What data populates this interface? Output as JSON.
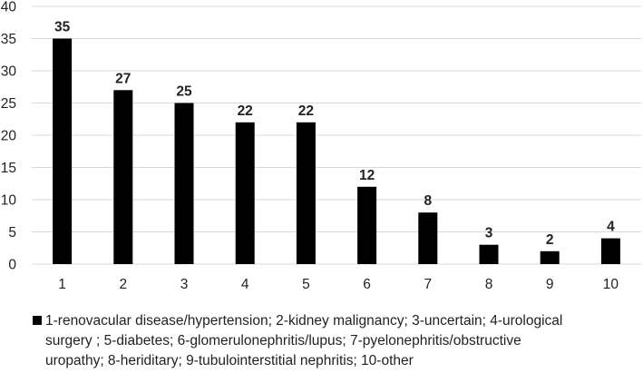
{
  "chart_data": {
    "type": "bar",
    "categories": [
      "1",
      "2",
      "3",
      "4",
      "5",
      "6",
      "7",
      "8",
      "9",
      "10"
    ],
    "values": [
      35,
      27,
      25,
      22,
      22,
      12,
      8,
      3,
      2,
      4
    ],
    "data_labels": [
      "35",
      "27",
      "25",
      "22",
      "22",
      "12",
      "8",
      "3",
      "2",
      "4"
    ],
    "y_ticks": [
      "0",
      "5",
      "10",
      "15",
      "20",
      "25",
      "30",
      "35",
      "40"
    ],
    "ylim": [
      0,
      40
    ],
    "grid": "horizontal",
    "bar_color": "#000000",
    "grid_color": "#d9d9d9",
    "legend_placement": "bottom",
    "legend": {
      "lines": [
        "1-renovacular disease/hypertension; 2-kidney malignancy; 3-uncertain; 4-urological",
        "surgery ; 5-diabetes; 6-glomerulonephritis/lupus; 7-pyelonephritis/obstructive",
        "uropathy; 8-heriditary; 9-tubulointerstitial nephritis; 10-other"
      ]
    }
  }
}
